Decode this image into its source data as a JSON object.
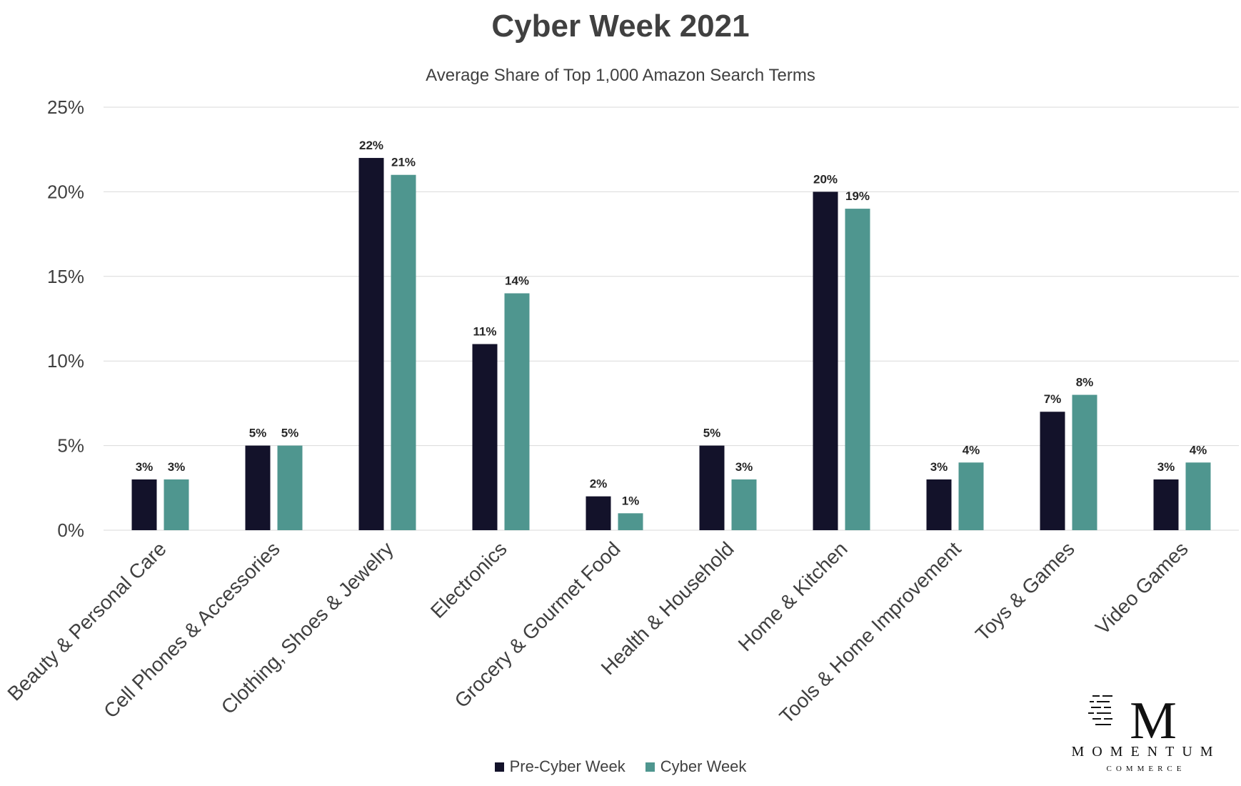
{
  "chart_data": {
    "type": "bar",
    "title": "Cyber Week 2021",
    "subtitle": "Average Share of Top 1,000 Amazon Search Terms",
    "categories": [
      "Beauty & Personal Care",
      "Cell Phones & Accessories",
      "Clothing, Shoes & Jewelry",
      "Electronics",
      "Grocery & Gourmet Food",
      "Health & Household",
      "Home & Kitchen",
      "Tools & Home Improvement",
      "Toys & Games",
      "Video Games"
    ],
    "series": [
      {
        "name": "Pre-Cyber Week",
        "values": [
          3,
          5,
          22,
          11,
          2,
          5,
          20,
          3,
          7,
          3
        ],
        "color": "#13122a"
      },
      {
        "name": "Cyber Week",
        "values": [
          3,
          5,
          21,
          14,
          1,
          3,
          19,
          4,
          8,
          4
        ],
        "color": "#4f968f"
      }
    ],
    "ylim": [
      0,
      25
    ],
    "yticks": [
      "0%",
      "5%",
      "10%",
      "15%",
      "20%",
      "25%"
    ],
    "value_suffix": "%",
    "grid": true,
    "legend_position": "bottom"
  },
  "logo": {
    "name": "MOMENTUM",
    "sub": "COMMERCE"
  }
}
